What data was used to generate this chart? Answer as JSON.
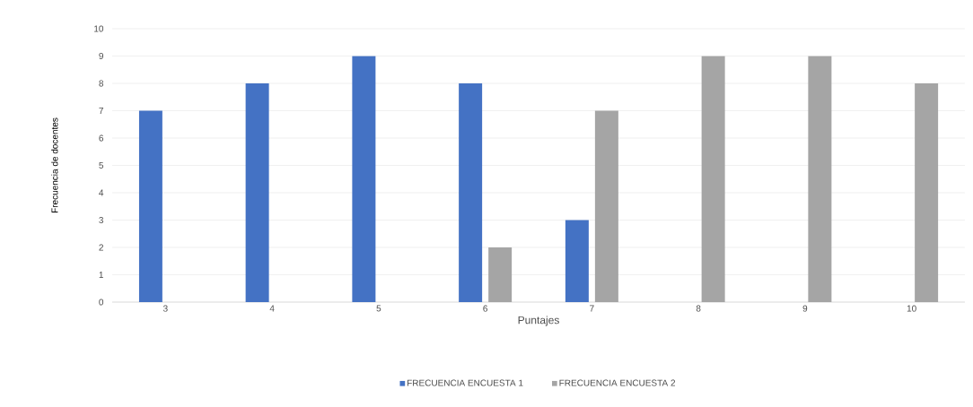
{
  "chart_data": {
    "type": "bar",
    "xlabel": "Puntajes",
    "ylabel": "Frecuencia de docentes",
    "categories": [
      "3",
      "4",
      "5",
      "6",
      "7",
      "8",
      "9",
      "10"
    ],
    "series": [
      {
        "name": "FRECUENCIA ENCUESTA 1",
        "color": "#4472c4",
        "values": [
          7,
          8,
          9,
          8,
          3,
          null,
          null,
          null
        ]
      },
      {
        "name": "FRECUENCIA ENCUESTA 2",
        "color": "#a5a5a5",
        "values": [
          null,
          null,
          null,
          2,
          7,
          9,
          9,
          8
        ]
      }
    ],
    "ylim": [
      0,
      10
    ],
    "yticks": [
      0,
      1,
      2,
      3,
      4,
      5,
      6,
      7,
      8,
      9,
      10
    ],
    "grid": "y",
    "legend": "bottom"
  }
}
